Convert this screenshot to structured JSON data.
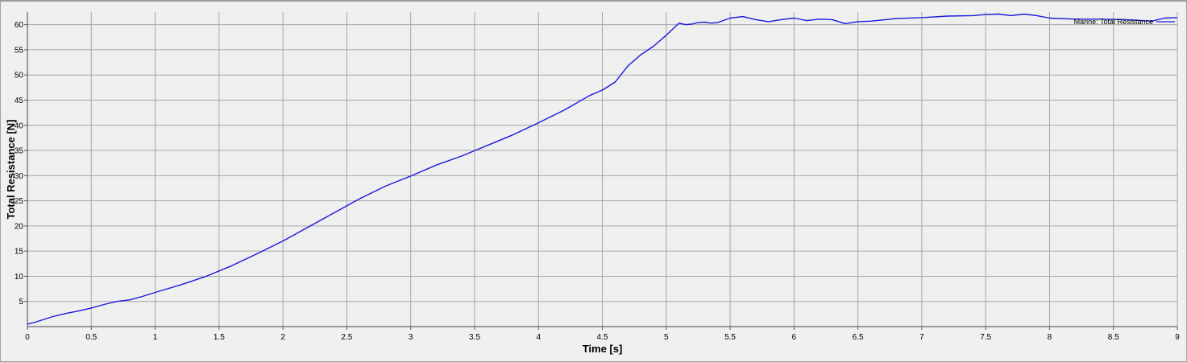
{
  "chart_data": {
    "type": "line",
    "title": "",
    "xlabel": "Time [s]",
    "ylabel": "Total Resistance [N]",
    "xlim": [
      0,
      9
    ],
    "ylim": [
      0,
      62.5
    ],
    "grid": true,
    "legend_position": "top-right",
    "x_ticks": [
      "0",
      "0.5",
      "1",
      "1.5",
      "2",
      "2.5",
      "3",
      "3.5",
      "4",
      "4.5",
      "5",
      "5.5",
      "6",
      "6.5",
      "7",
      "7.5",
      "8",
      "8.5",
      "9"
    ],
    "y_ticks": [
      "5",
      "10",
      "15",
      "20",
      "25",
      "30",
      "35",
      "40",
      "45",
      "50",
      "55",
      "60"
    ],
    "series": [
      {
        "name": "Marine: Total Resistance",
        "color": "#1a1adc",
        "x": [
          0,
          0.05,
          0.1,
          0.2,
          0.3,
          0.4,
          0.5,
          0.6,
          0.7,
          0.8,
          0.9,
          1.0,
          1.2,
          1.4,
          1.6,
          1.8,
          2.0,
          2.2,
          2.4,
          2.6,
          2.8,
          3.0,
          3.2,
          3.4,
          3.6,
          3.8,
          4.0,
          4.2,
          4.4,
          4.5,
          4.6,
          4.7,
          4.8,
          4.9,
          5.0,
          5.1,
          5.15,
          5.2,
          5.25,
          5.3,
          5.35,
          5.4,
          5.5,
          5.6,
          5.7,
          5.8,
          5.9,
          6.0,
          6.1,
          6.2,
          6.3,
          6.4,
          6.5,
          6.6,
          6.8,
          7.0,
          7.2,
          7.4,
          7.5,
          7.6,
          7.7,
          7.8,
          7.9,
          8.0,
          8.2,
          8.4,
          8.6,
          8.8,
          8.9,
          9.0
        ],
        "y": [
          0.5,
          0.8,
          1.2,
          2.0,
          2.6,
          3.1,
          3.7,
          4.4,
          5.0,
          5.3,
          6.0,
          6.8,
          8.3,
          10.0,
          12.1,
          14.5,
          17.0,
          19.8,
          22.6,
          25.4,
          27.9,
          29.9,
          32.1,
          33.9,
          36.0,
          38.1,
          40.5,
          43.0,
          45.9,
          47.0,
          48.6,
          51.8,
          54.0,
          55.7,
          57.9,
          60.3,
          60.0,
          60.1,
          60.4,
          60.5,
          60.3,
          60.4,
          61.3,
          61.6,
          61.0,
          60.6,
          61.0,
          61.3,
          60.8,
          61.1,
          61.0,
          60.2,
          60.6,
          60.7,
          61.2,
          61.4,
          61.7,
          61.8,
          62.0,
          62.1,
          61.8,
          62.1,
          61.8,
          61.3,
          61.1,
          61.1,
          61.0,
          60.7,
          61.3,
          61.4
        ]
      }
    ]
  }
}
